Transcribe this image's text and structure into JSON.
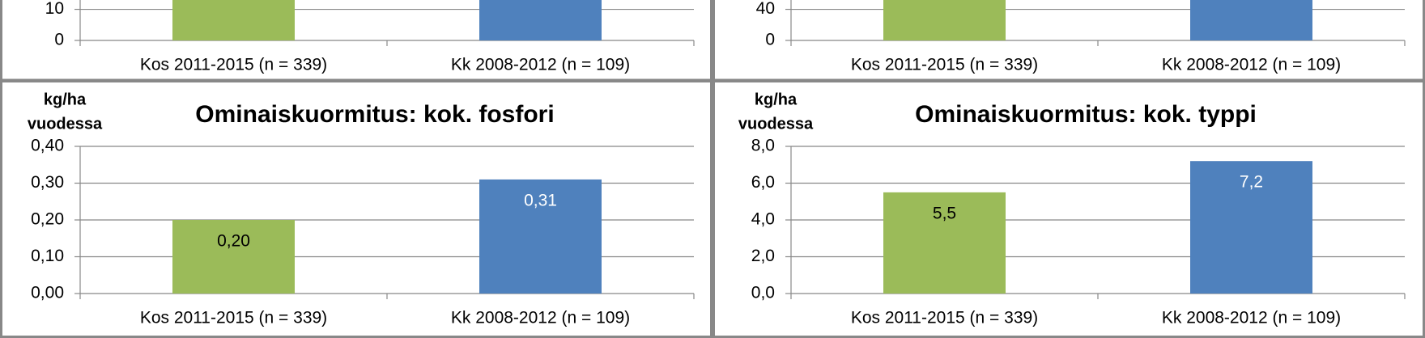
{
  "chart_data": [
    {
      "type": "bar",
      "categories": [
        "Kos 2011-2015 (n = 339)",
        "Kk 2008-2012 (n = 109)"
      ],
      "values": [
        null,
        null
      ],
      "colors": [
        "#9bbb59",
        "#4f81bd"
      ],
      "ylim": [
        0,
        13
      ],
      "yticks": [
        0,
        10
      ],
      "grid": true
    },
    {
      "type": "bar",
      "categories": [
        "Kos 2011-2015 (n = 339)",
        "Kk 2008-2012 (n = 109)"
      ],
      "values": [
        null,
        null
      ],
      "colors": [
        "#9bbb59",
        "#4f81bd"
      ],
      "ylim": [
        0,
        52
      ],
      "yticks": [
        0,
        40
      ],
      "grid": true
    },
    {
      "type": "bar",
      "title": "Ominaiskuormitus: kok. fosfori",
      "y_label": [
        "kg/ha",
        "vuodessa"
      ],
      "categories": [
        "Kos 2011-2015 (n = 339)",
        "Kk 2008-2012 (n = 109)"
      ],
      "values": [
        0.2,
        0.31
      ],
      "value_labels": [
        "0,20",
        "0,31"
      ],
      "colors": [
        "#9bbb59",
        "#4f81bd"
      ],
      "label_colors": [
        "#000000",
        "#ffffff"
      ],
      "ylim": [
        0,
        0.4
      ],
      "yticks": [
        {
          "value": 0,
          "label": "0,00"
        },
        {
          "value": 0.1,
          "label": "0,10"
        },
        {
          "value": 0.2,
          "label": "0,20"
        },
        {
          "value": 0.3,
          "label": "0,30"
        },
        {
          "value": 0.4,
          "label": "0,40"
        }
      ],
      "grid": true
    },
    {
      "type": "bar",
      "title": "Ominaiskuormitus: kok. typpi",
      "y_label": [
        "kg/ha",
        "vuodessa"
      ],
      "categories": [
        "Kos 2011-2015 (n = 339)",
        "Kk 2008-2012 (n = 109)"
      ],
      "values": [
        5.5,
        7.2
      ],
      "value_labels": [
        "5,5",
        "7,2"
      ],
      "colors": [
        "#9bbb59",
        "#4f81bd"
      ],
      "label_colors": [
        "#000000",
        "#ffffff"
      ],
      "ylim": [
        0,
        8
      ],
      "yticks": [
        {
          "value": 0,
          "label": "0,0"
        },
        {
          "value": 2,
          "label": "2,0"
        },
        {
          "value": 4,
          "label": "4,0"
        },
        {
          "value": 6,
          "label": "6,0"
        },
        {
          "value": 8,
          "label": "8,0"
        }
      ],
      "grid": true
    }
  ]
}
